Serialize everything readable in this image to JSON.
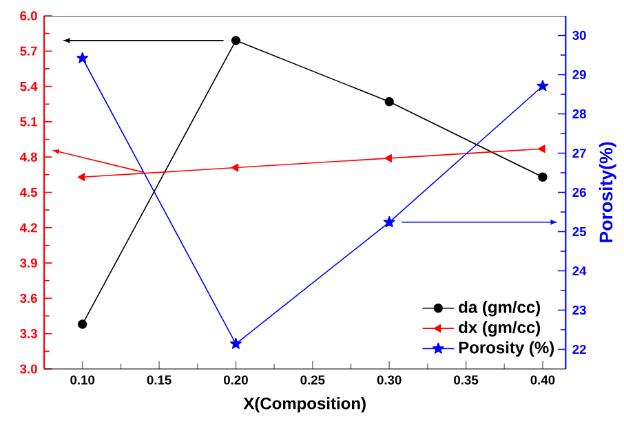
{
  "chart_data": {
    "type": "line",
    "xlabel": "X(Composition)",
    "y2label": "Porosity(%)",
    "x": [
      0.1,
      0.2,
      0.3,
      0.4
    ],
    "series": [
      {
        "name": "da (gm/cc)",
        "color": "#000000",
        "marker": "circle",
        "values": [
          3.38,
          5.79,
          5.27,
          4.63
        ]
      },
      {
        "name": "dx (gm/cc)",
        "color": "#ff0000",
        "marker": "triangle",
        "values": [
          4.63,
          4.71,
          4.79,
          4.87
        ]
      },
      {
        "name": "Porosity (%)",
        "color": "#0000ff",
        "marker": "star",
        "axis": "y2",
        "values": [
          29.42,
          22.14,
          25.24,
          28.71
        ]
      }
    ],
    "xlim": [
      0.075,
      0.415
    ],
    "xticks": [
      {
        "value": 0.1,
        "label": "0.10"
      },
      0.15,
      {
        "value": 0.2,
        "label": "0.20"
      },
      0.25,
      {
        "value": 0.3,
        "label": "0.30"
      },
      0.35,
      {
        "value": 0.4,
        "label": "0.40"
      }
    ],
    "ylim": [
      3.0,
      6.0
    ],
    "yticks": [
      {
        "value": 3.0,
        "label": "3.0"
      },
      3.3,
      3.6,
      3.9,
      4.2,
      4.5,
      4.8,
      5.1,
      5.4,
      5.7,
      {
        "value": 6.0,
        "label": "6.0"
      }
    ],
    "y2lim": [
      21.5,
      30.5
    ],
    "y2ticks": [
      22,
      23,
      24,
      25,
      26,
      27,
      28,
      29,
      30
    ],
    "legend": "bottom right",
    "grid": false
  }
}
